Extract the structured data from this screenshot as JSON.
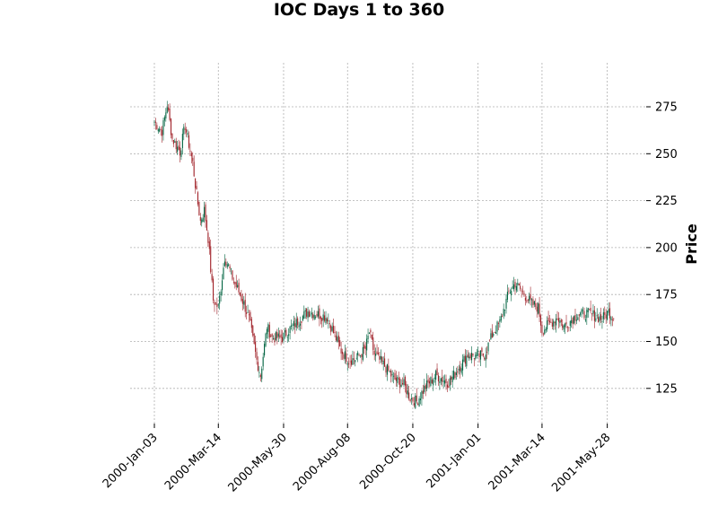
{
  "chart_data": {
    "type": "candlestick",
    "title": "IOC Days 1 to 360",
    "ylabel": "Price",
    "xlabel": "",
    "ylim": [
      107,
      292
    ],
    "yticks": [
      125,
      150,
      175,
      200,
      225,
      250,
      275
    ],
    "xticks": [
      {
        "label": "2000-Jan-03",
        "index": 0
      },
      {
        "label": "2000-Mar-14",
        "index": 50
      },
      {
        "label": "2000-May-30",
        "index": 101
      },
      {
        "label": "2000-Aug-08",
        "index": 151
      },
      {
        "label": "2000-Oct-20",
        "index": 202
      },
      {
        "label": "2001-Jan-01",
        "index": 253
      },
      {
        "label": "2001-Mar-14",
        "index": 303
      },
      {
        "label": "2001-May-28",
        "index": 354
      }
    ],
    "n_days": 360,
    "grid": true,
    "up_color": "#006340",
    "down_color": "#a02128",
    "close_keyframes": [
      [
        0,
        267
      ],
      [
        6,
        262
      ],
      [
        10,
        276
      ],
      [
        14,
        258
      ],
      [
        20,
        251
      ],
      [
        24,
        265
      ],
      [
        27,
        255
      ],
      [
        30,
        245
      ],
      [
        33,
        228
      ],
      [
        36,
        214
      ],
      [
        39,
        220
      ],
      [
        42,
        205
      ],
      [
        46,
        172
      ],
      [
        50,
        168
      ],
      [
        55,
        195
      ],
      [
        58,
        190
      ],
      [
        62,
        182
      ],
      [
        65,
        178
      ],
      [
        70,
        170
      ],
      [
        74,
        162
      ],
      [
        80,
        140
      ],
      [
        83,
        132
      ],
      [
        88,
        158
      ],
      [
        92,
        152
      ],
      [
        100,
        152
      ],
      [
        105,
        156
      ],
      [
        120,
        166
      ],
      [
        135,
        163
      ],
      [
        146,
        145
      ],
      [
        152,
        140
      ],
      [
        158,
        141
      ],
      [
        165,
        146
      ],
      [
        168,
        155
      ],
      [
        172,
        143
      ],
      [
        180,
        137
      ],
      [
        187,
        130
      ],
      [
        195,
        127
      ],
      [
        200,
        120
      ],
      [
        205,
        118
      ],
      [
        212,
        126
      ],
      [
        220,
        132
      ],
      [
        230,
        128
      ],
      [
        238,
        136
      ],
      [
        245,
        143
      ],
      [
        252,
        142
      ],
      [
        258,
        143
      ],
      [
        265,
        155
      ],
      [
        270,
        160
      ],
      [
        277,
        176
      ],
      [
        282,
        181
      ],
      [
        288,
        176
      ],
      [
        295,
        170
      ],
      [
        300,
        168
      ],
      [
        303,
        156
      ],
      [
        310,
        160
      ],
      [
        315,
        163
      ],
      [
        320,
        158
      ],
      [
        330,
        164
      ],
      [
        340,
        165
      ],
      [
        350,
        162
      ],
      [
        355,
        166
      ],
      [
        359,
        163
      ]
    ]
  }
}
